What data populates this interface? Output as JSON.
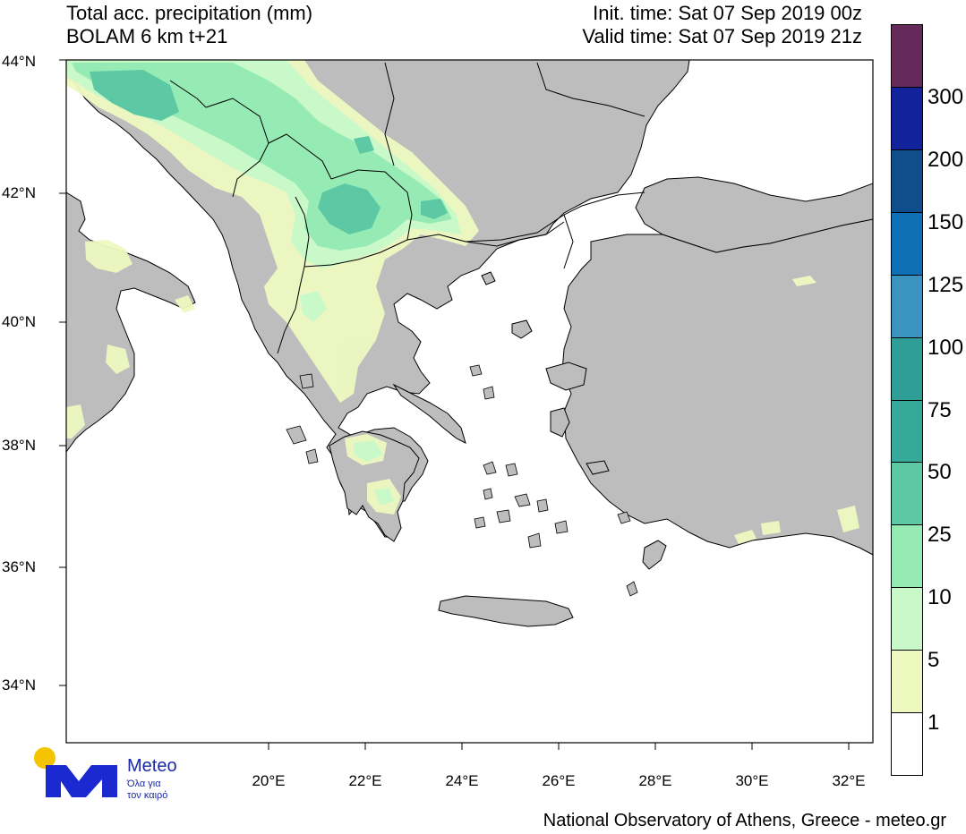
{
  "header": {
    "title_line1": "Total acc. precipitation (mm)",
    "title_line2": "BOLAM 6 km t+21",
    "init_time": "Init. time: Sat 07 Sep 2019 00z",
    "valid_time": "Valid time: Sat 07 Sep 2019 21z"
  },
  "axes": {
    "lat_labels": [
      "44°N",
      "42°N",
      "40°N",
      "38°N",
      "36°N",
      "34°N"
    ],
    "lon_labels": [
      "20°E",
      "22°E",
      "24°E",
      "26°E",
      "28°E",
      "30°E",
      "32°E"
    ]
  },
  "colorbar": {
    "labels": [
      "1",
      "5",
      "10",
      "25",
      "50",
      "75",
      "100",
      "125",
      "150",
      "200",
      "300"
    ],
    "colors": [
      "#ffffff",
      "#eef9c0",
      "#c9f9c9",
      "#96eab4",
      "#5cc9a4",
      "#35a99a",
      "#2e9e96",
      "#3b93bf",
      "#1070b5",
      "#0f4d8b",
      "#12229a",
      "#662a5a"
    ]
  },
  "colors": {
    "land": "#bdbdbd",
    "sea": "#ffffff",
    "precip_light": "#eef9c0",
    "precip_medium": "#c9f9c9",
    "precip_heavy": "#96eab4",
    "precip_strong": "#5cc9a4"
  },
  "logo": {
    "name": "Meteo",
    "tagline_line1": "Όλα για",
    "tagline_line2": "τον καιρό"
  },
  "footer": "National Observatory of Athens, Greece - meteo.gr"
}
